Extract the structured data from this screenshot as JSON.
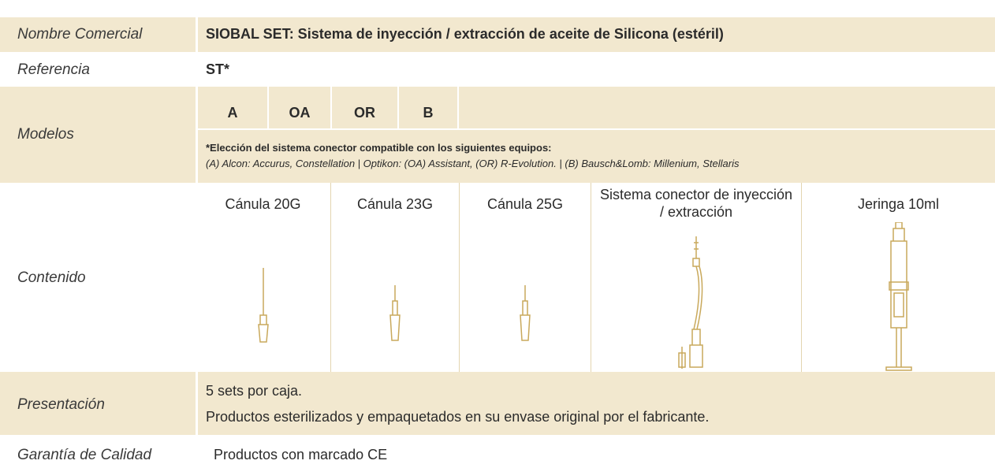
{
  "table": {
    "rows": [
      {
        "label": "Nombre Comercial",
        "value": "SIOBAL SET: Sistema de inyección / extracción de aceite de Silicona (estéril)"
      },
      {
        "label": "Referencia",
        "value": "ST*"
      },
      {
        "label": "Modelos",
        "models": [
          "A",
          "OA",
          "OR",
          "B"
        ],
        "note_title": "*Elección del sistema conector compatible con los siguientes equipos:",
        "note": "(A) Alcon: Accurus, Constellation | Optikon: (OA) Assistant, (OR) R-Evolution. | (B) Bausch&Lomb: Millenium, Stellaris"
      },
      {
        "label": "Contenido",
        "items": [
          "Cánula 20G",
          "Cánula 23G",
          "Cánula 25G",
          "Sistema conector de inyección / extracción",
          "Jeringa 10ml"
        ]
      },
      {
        "label": "Presentación",
        "lines": [
          "5 sets por caja.",
          "Productos esterilizados y empaquetados en su envase original por el fabricante."
        ]
      },
      {
        "label": "Garantía de Calidad",
        "value": "Productos con marcado CE"
      }
    ]
  }
}
